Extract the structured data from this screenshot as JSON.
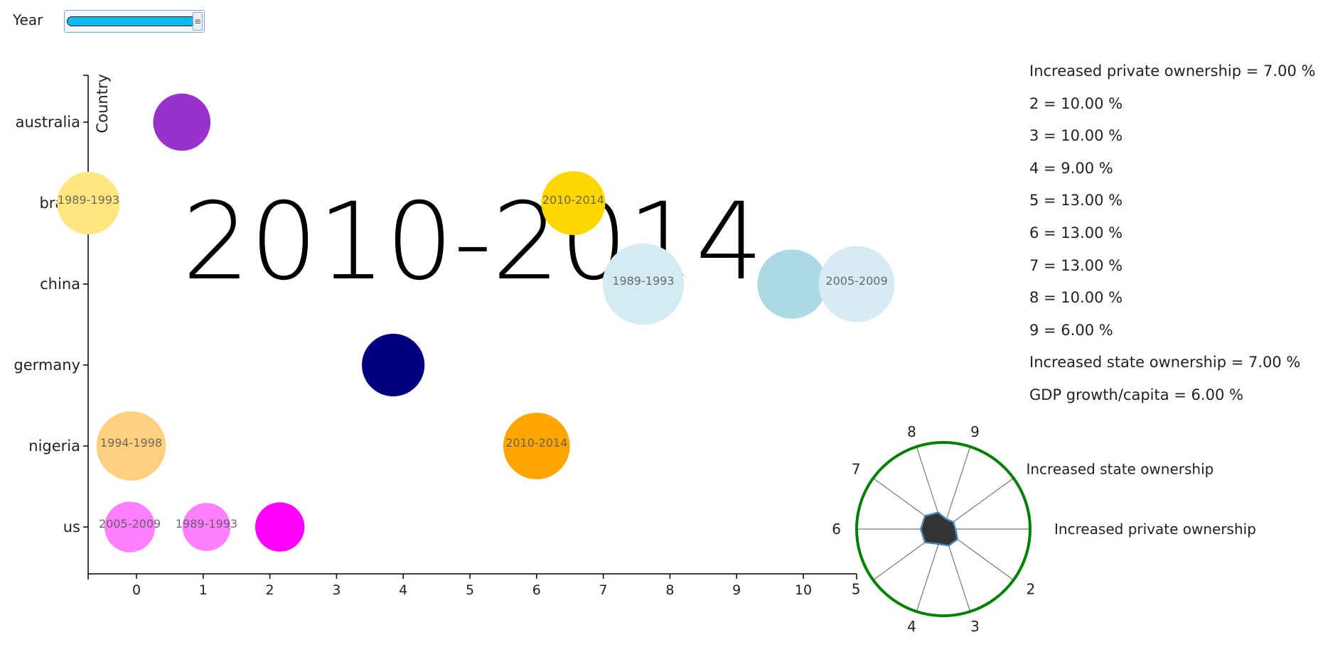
{
  "controls": {
    "year_label": "Year",
    "slider_value_fraction": 0.95
  },
  "chart_data": {
    "type": "scatter",
    "title": "2010-2014",
    "ylabel": "Country",
    "xlabel": "",
    "categories": [
      "australia",
      "brazil",
      "china",
      "germany",
      "nigeria",
      "us"
    ],
    "x_ticks": [
      0,
      1,
      2,
      3,
      4,
      5,
      6,
      7,
      8,
      9,
      10
    ],
    "xlim": [
      -0.72,
      10.8
    ],
    "points": [
      {
        "country": "australia",
        "x": 0.68,
        "r": 0.43,
        "color": "#9932CC",
        "opacity": 1.0,
        "label": ""
      },
      {
        "country": "brazil",
        "x": -0.72,
        "r": 0.47,
        "color": "#FFE680",
        "opacity": 1.0,
        "label": "1989-1993"
      },
      {
        "country": "brazil",
        "x": 6.55,
        "r": 0.48,
        "color": "#FFD700",
        "opacity": 1.0,
        "label": "2010-2014"
      },
      {
        "country": "china",
        "x": 7.6,
        "r": 0.61,
        "color": "#D4EBF2",
        "opacity": 1.0,
        "label": "1989-1993"
      },
      {
        "country": "china",
        "x": 9.83,
        "r": 0.52,
        "color": "#ADD8E6",
        "opacity": 1.0,
        "label": ""
      },
      {
        "country": "china",
        "x": 10.8,
        "r": 0.57,
        "color": "#D6EBF2",
        "opacity": 1.0,
        "label": "2005-2009"
      },
      {
        "country": "germany",
        "x": 3.85,
        "r": 0.47,
        "color": "#000080",
        "opacity": 1.0,
        "label": ""
      },
      {
        "country": "nigeria",
        "x": -0.08,
        "r": 0.52,
        "color": "#FFD080",
        "opacity": 1.0,
        "label": "1994-1998"
      },
      {
        "country": "nigeria",
        "x": 6.0,
        "r": 0.5,
        "color": "#FFA500",
        "opacity": 1.0,
        "label": "2010-2014"
      },
      {
        "country": "us",
        "x": -0.1,
        "r": 0.38,
        "color": "#FF80FF",
        "opacity": 1.0,
        "label": "2005-2009"
      },
      {
        "country": "us",
        "x": 1.05,
        "r": 0.36,
        "color": "#FF80FF",
        "opacity": 1.0,
        "label": "1989-1993"
      },
      {
        "country": "us",
        "x": 2.15,
        "r": 0.37,
        "color": "#FF00FF",
        "opacity": 1.0,
        "label": ""
      }
    ],
    "radar": {
      "axes": [
        "Increased private ownership",
        "2",
        "3",
        "4",
        "5",
        "6",
        "7",
        "8",
        "9",
        "Increased state ownership"
      ],
      "values": [
        7,
        10,
        10,
        9,
        13,
        13,
        13,
        10,
        6,
        7
      ],
      "max": 50,
      "fill_color": "#333333",
      "stroke_color": "#4682B4",
      "outer_color": "#008000"
    },
    "legend": [
      "Increased private ownership = 7.00 %",
      "2 = 10.00 %",
      "3 = 10.00 %",
      "4 = 9.00 %",
      "5 = 13.00 %",
      "6 = 13.00 %",
      "7 = 13.00 %",
      "8 = 10.00 %",
      "9 = 6.00 %",
      "Increased state ownership = 7.00 %",
      "GDP growth/capita = 6.00 %"
    ]
  }
}
